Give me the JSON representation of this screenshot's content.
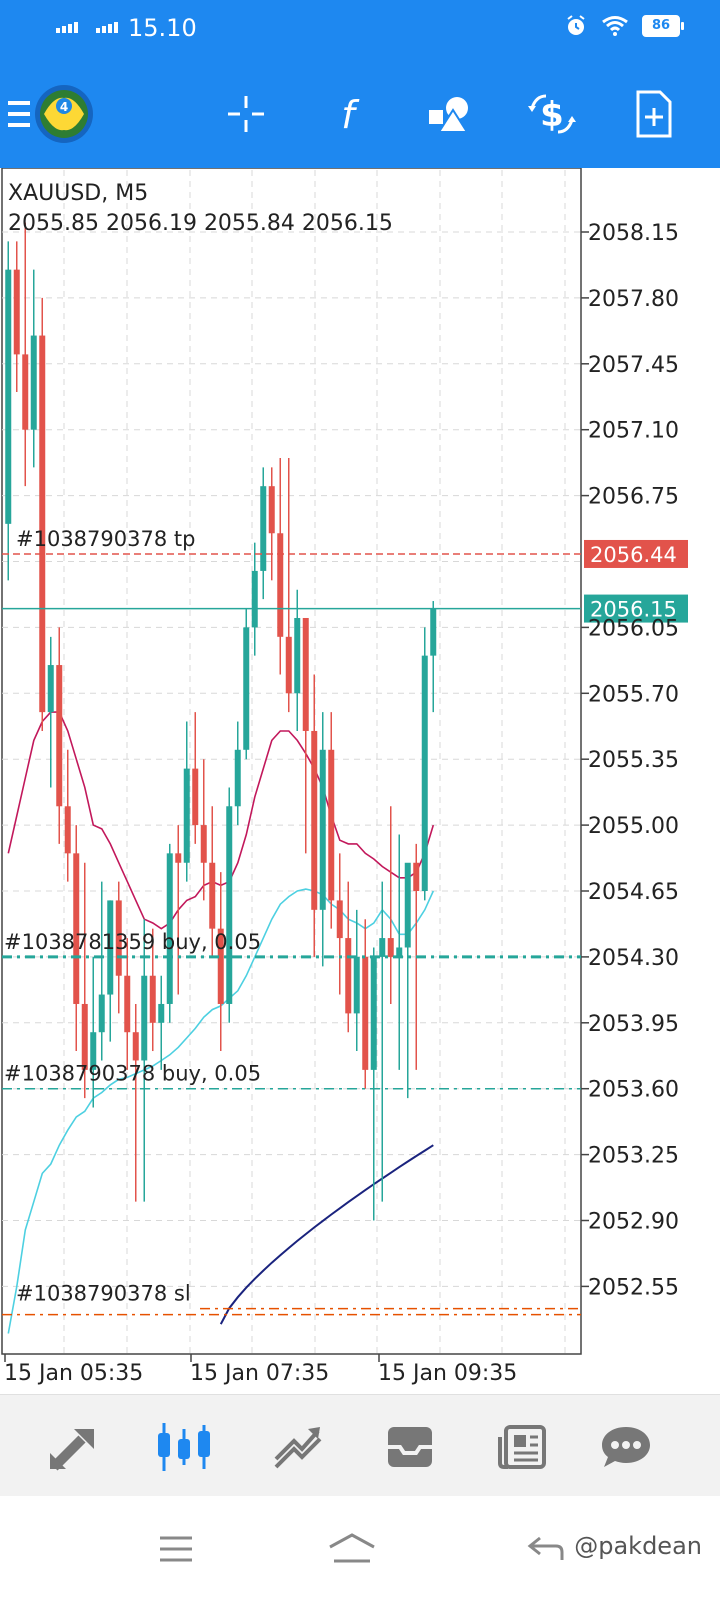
{
  "status": {
    "time": "15.10",
    "battery": "86"
  },
  "toolbar": {
    "icons": [
      "menu-icon",
      "app-logo",
      "crosshair-icon",
      "indicators-icon",
      "objects-icon",
      "trade-icon",
      "new-order-icon"
    ]
  },
  "chart": {
    "symbol_label": "XAUUSD, M5",
    "ohlc_label": "2055.85 2056.19 2055.84 2056.15",
    "price_axis": [
      "2058.15",
      "2057.80",
      "2057.45",
      "2057.10",
      "2056.75",
      "2056.05",
      "2055.70",
      "2055.35",
      "2055.00",
      "2054.65",
      "2054.30",
      "2053.95",
      "2053.60",
      "2053.25",
      "2052.90",
      "2052.55"
    ],
    "time_axis": [
      "15 Jan 05:35",
      "15 Jan 07:35",
      "15 Jan 09:35"
    ],
    "tp_label": "#1038790378 tp",
    "tp_price": "2056.44",
    "current_price": "2056.15",
    "order1_label": "#1038781359 buy, 0.05",
    "order2_label": "#1038790378 buy, 0.05",
    "sl_label": "#1038790378 sl",
    "colors": {
      "bull": "#26a69a",
      "bear": "#e2534b",
      "tp": "#e2534b",
      "current": "#26a69a",
      "ma_fast": "#c2185b",
      "ma_mid": "#4dd0e1",
      "ma_slow": "#1a237e"
    }
  },
  "bottom_nav": [
    "quotes-icon",
    "chart-icon",
    "trade-icon",
    "inbox-icon",
    "news-icon",
    "chat-icon"
  ],
  "watermark": "@pakdean"
}
